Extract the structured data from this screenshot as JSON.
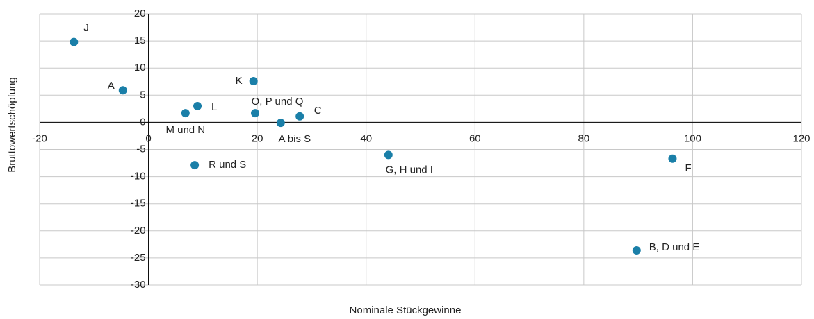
{
  "chart_data": {
    "type": "scatter",
    "x_label": "Nominale Stückgewinne",
    "y_label": "Bruttowertschöpfung",
    "series": [
      {
        "color": "#1a7fa8",
        "labels": [
          "J",
          "A",
          "K",
          "L",
          "M und N",
          "O, P und Q",
          "C",
          "A bis S",
          "G, H und I",
          "R und S",
          "F",
          "B, D und E"
        ],
        "x": [
          -13.7,
          -4.7,
          19.3,
          9.0,
          6.8,
          19.6,
          27.8,
          24.3,
          44.1,
          8.5,
          96.3,
          89.7
        ],
        "values": [
          14.8,
          5.9,
          7.6,
          3.0,
          1.7,
          1.7,
          1.1,
          -0.1,
          -6.0,
          -7.9,
          -6.7,
          -23.6
        ]
      }
    ],
    "xlim": [
      -20,
      120
    ],
    "xticks": [
      -20,
      0,
      20,
      40,
      60,
      80,
      100,
      120
    ],
    "ylim": [
      -30,
      20
    ],
    "yticks": [
      -30,
      -25,
      -20,
      -15,
      -10,
      -5,
      0,
      5,
      10,
      15,
      20
    ],
    "grid": true
  }
}
